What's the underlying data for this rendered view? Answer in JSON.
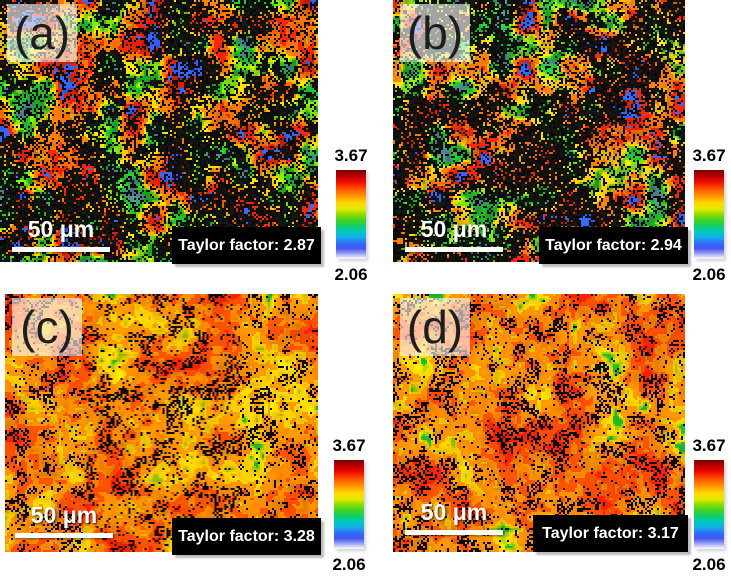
{
  "figure_type": "EBSD Taylor factor maps, 2x2 panel scientific figure",
  "colorbar": {
    "max_label": "3.67",
    "min_label": "2.06",
    "max_value": 3.67,
    "min_value": 2.06,
    "gradient_stops": [
      [
        "#780000",
        0
      ],
      [
        "#b40000",
        6
      ],
      [
        "#ee0800",
        13
      ],
      [
        "#ff5a00",
        22
      ],
      [
        "#ff9c00",
        30
      ],
      [
        "#ffd800",
        37
      ],
      [
        "#e4ea00",
        44
      ],
      [
        "#8cdc00",
        50
      ],
      [
        "#3cd228",
        57
      ],
      [
        "#0ccd78",
        64
      ],
      [
        "#00c8c0",
        70
      ],
      [
        "#14aaec",
        76
      ],
      [
        "#326ef8",
        82
      ],
      [
        "#4156f0",
        88
      ],
      [
        "#8c96f2",
        93
      ],
      [
        "#ffffff",
        100
      ]
    ]
  },
  "panels": [
    {
      "id": "a",
      "label": "(a)",
      "scale_bar_label": "50 μm",
      "taylor_factor_text": "Taylor factor: 2.87",
      "taylor_factor_value": 2.87,
      "texture": {
        "style": "dark",
        "seed": 5,
        "green_cut": 0.1
      }
    },
    {
      "id": "b",
      "label": "(b)",
      "scale_bar_label": "50 μm",
      "taylor_factor_text": "Taylor factor: 2.94",
      "taylor_factor_value": 2.94,
      "texture": {
        "style": "dark",
        "seed": 9,
        "green_cut": 0.1
      }
    },
    {
      "id": "c",
      "label": "(c)",
      "scale_bar_label": "50 μm",
      "taylor_factor_text": "Taylor factor: 3.28",
      "taylor_factor_value": 3.28,
      "texture": {
        "style": "warm",
        "seed": 3,
        "green_cut": 0.1
      }
    },
    {
      "id": "d",
      "label": "(d)",
      "scale_bar_label": "50 μm",
      "taylor_factor_text": "Taylor factor: 3.17",
      "taylor_factor_value": 3.17,
      "texture": {
        "style": "warm",
        "seed": 7,
        "green_cut": 0.17
      }
    }
  ],
  "textures": {
    "dark_palette": [
      "#508c91",
      "#1eb928",
      "#78d20a",
      "#ffc800",
      "#ff7300",
      "#e12305",
      "#2d5aeb"
    ],
    "warm_palette": [
      "#28c832",
      "#a0dc00",
      "#ffd200",
      "#ff8c00",
      "#ff4b00",
      "#eb1e00"
    ],
    "speckle_color": "#0a0a0a"
  },
  "colors": {
    "background": "#ffffff",
    "annotation_box_bg": "#000000",
    "annotation_text": "#ffffff",
    "panel_label_text": "#1e1e1e",
    "scale_bar": "#ffffff",
    "colorbar_label_text": "#000000"
  }
}
